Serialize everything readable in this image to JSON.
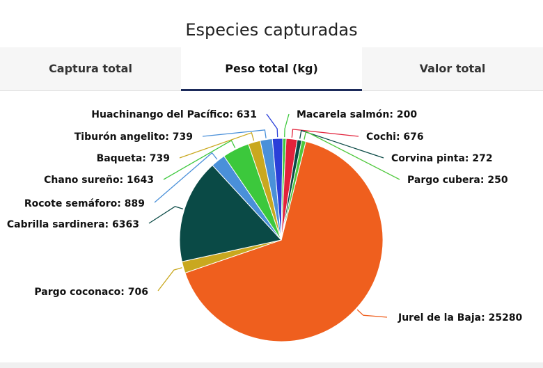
{
  "title": "Especies capturadas",
  "tabs": [
    {
      "label": "Captura total",
      "active": false
    },
    {
      "label": "Peso total (kg)",
      "active": true
    },
    {
      "label": "Valor total",
      "active": false
    }
  ],
  "chart_data": {
    "type": "pie",
    "slices": [
      {
        "label": "Jurel de la Baja",
        "value": 25280,
        "color": "#ef5f1e"
      },
      {
        "label": "Cochi",
        "value": 676,
        "color": "#e2223b"
      },
      {
        "label": "Corvina pinta",
        "value": 272,
        "color": "#0a4a46"
      },
      {
        "label": "Pargo cubera",
        "value": 250,
        "color": "#4fc83c"
      },
      {
        "label": "Pargo coconaco",
        "value": 706,
        "color": "#c9a81f"
      },
      {
        "label": "Cabrilla sardinera",
        "value": 6363,
        "color": "#0a4a46"
      },
      {
        "label": "Rocote semáforo",
        "value": 889,
        "color": "#4a90d9"
      },
      {
        "label": "Chano sureño",
        "value": 1643,
        "color": "#3cc83c"
      },
      {
        "label": "Baqueta",
        "value": 739,
        "color": "#c9a81f"
      },
      {
        "label": "Tiburón angelito",
        "value": 739,
        "color": "#4a90d9"
      },
      {
        "label": "Huachinango del Pacífico",
        "value": 631,
        "color": "#2a3fd9"
      },
      {
        "label": "Macarela salmón",
        "value": 200,
        "color": "#3cc83c"
      }
    ]
  }
}
